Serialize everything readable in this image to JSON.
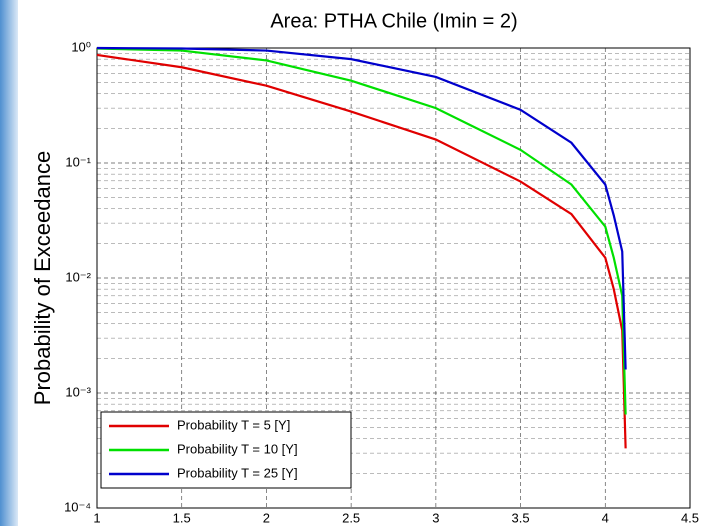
{
  "chart_data": {
    "type": "line",
    "title": "Area: PTHA Chile (Imin = 2)",
    "y_label": "Probability of Exceedance",
    "x": [
      1,
      1.5,
      2,
      2.5,
      3,
      3.5,
      3.8,
      4.0,
      4.05,
      4.1,
      4.12
    ],
    "series": [
      {
        "name": "Probability T = 5 [Y]",
        "color": "#e00000",
        "values": [
          0.87,
          0.68,
          0.47,
          0.28,
          0.16,
          0.069,
          0.036,
          0.015,
          0.008,
          0.0035,
          0.00033
        ]
      },
      {
        "name": "Probability T = 10 [Y]",
        "color": "#00e000",
        "values": [
          0.99,
          0.95,
          0.78,
          0.52,
          0.3,
          0.13,
          0.065,
          0.028,
          0.015,
          0.007,
          0.00065
        ]
      },
      {
        "name": "Probability T = 25 [Y]",
        "color": "#0000cc",
        "values": [
          1,
          0.99,
          0.95,
          0.8,
          0.56,
          0.29,
          0.15,
          0.065,
          0.035,
          0.017,
          0.0016
        ]
      }
    ],
    "xlim": [
      1,
      4.5
    ],
    "xticks": [
      1,
      1.5,
      2,
      2.5,
      3,
      3.5,
      4,
      4.5
    ],
    "ylim": [
      0.0001,
      1
    ],
    "y_scale": "log",
    "yticks": [
      {
        "value": 0.0001,
        "label": "10⁻⁴"
      },
      {
        "value": 0.001,
        "label": "10⁻³"
      },
      {
        "value": 0.01,
        "label": "10⁻²"
      },
      {
        "value": 0.1,
        "label": "10⁻¹"
      },
      {
        "value": 1,
        "label": "10⁰"
      }
    ],
    "grid": true,
    "legend": "lower left"
  }
}
